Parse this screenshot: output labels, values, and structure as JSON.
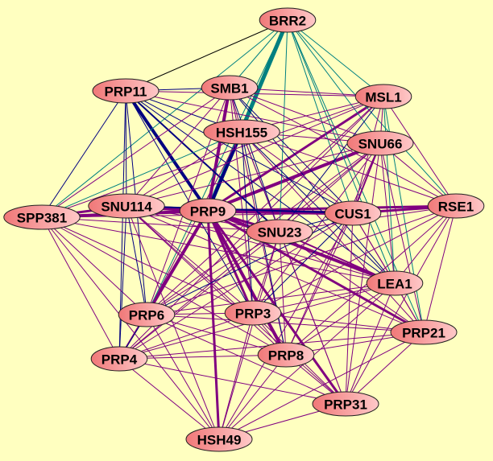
{
  "background": "#ffffc0",
  "node_fill": [
    "#f07878",
    "#ffc8c8"
  ],
  "edge_colors": {
    "p": "#800080",
    "n": "#000080",
    "t": "#008080",
    "k": "#000000"
  },
  "nodes": [
    "BRR2",
    "PRP11",
    "SMB1",
    "MSL1",
    "HSH155",
    "SNU66",
    "SPP381",
    "SNU114",
    "PRP9",
    "CUS1",
    "RSE1",
    "SNU23",
    "LEA1",
    "PRP6",
    "PRP3",
    "PRP21",
    "PRP4",
    "PRP8",
    "PRP31",
    "HSH49"
  ],
  "edges": [
    [
      "PRP9",
      "BRR2",
      "t",
      5
    ],
    [
      "PRP9",
      "HSH155",
      "n",
      4
    ],
    [
      "PRP9",
      "SMB1",
      "p",
      4
    ],
    [
      "PRP9",
      "PRP11",
      "n",
      4
    ],
    [
      "PRP9",
      "CUS1",
      "p",
      5
    ],
    [
      "PRP9",
      "SNU114",
      "p",
      5
    ],
    [
      "PRP9",
      "SPP381",
      "p",
      4
    ],
    [
      "PRP9",
      "SNU66",
      "p",
      4
    ],
    [
      "PRP9",
      "MSL1",
      "p",
      3
    ],
    [
      "PRP9",
      "PRP6",
      "p",
      4
    ],
    [
      "PRP9",
      "PRP3",
      "p",
      3
    ],
    [
      "PRP9",
      "PRP8",
      "p",
      4
    ],
    [
      "PRP9",
      "LEA1",
      "p",
      4
    ],
    [
      "PRP9",
      "PRP21",
      "p",
      3
    ],
    [
      "PRP9",
      "PRP31",
      "p",
      3
    ],
    [
      "PRP9",
      "HSH49",
      "p",
      3
    ],
    [
      "PRP9",
      "SNU23",
      "p",
      3
    ],
    [
      "PRP9",
      "RSE1",
      "p",
      3
    ],
    [
      "PRP9",
      "PRP4",
      "p",
      2
    ],
    [
      "BRR2",
      "PRP11",
      "k",
      1
    ],
    [
      "BRR2",
      "HSH155",
      "t",
      3
    ],
    [
      "BRR2",
      "SMB1",
      "t",
      1
    ],
    [
      "BRR2",
      "MSL1",
      "t",
      1
    ],
    [
      "BRR2",
      "SNU66",
      "t",
      1
    ],
    [
      "BRR2",
      "CUS1",
      "t",
      1
    ],
    [
      "BRR2",
      "RSE1",
      "t",
      1
    ],
    [
      "BRR2",
      "LEA1",
      "t",
      1
    ],
    [
      "BRR2",
      "PRP21",
      "t",
      1
    ],
    [
      "BRR2",
      "SNU23",
      "t",
      1
    ],
    [
      "BRR2",
      "PRP6",
      "t",
      1
    ],
    [
      "BRR2",
      "SPP381",
      "t",
      1
    ],
    [
      "PRP11",
      "SMB1",
      "n",
      1
    ],
    [
      "PRP11",
      "HSH155",
      "n",
      1
    ],
    [
      "PRP11",
      "SNU114",
      "n",
      1
    ],
    [
      "PRP11",
      "SPP381",
      "n",
      1
    ],
    [
      "PRP11",
      "PRP6",
      "n",
      1
    ],
    [
      "PRP11",
      "PRP4",
      "n",
      1
    ],
    [
      "PRP11",
      "SNU23",
      "n",
      2
    ],
    [
      "PRP11",
      "CUS1",
      "n",
      1
    ],
    [
      "PRP11",
      "MSL1",
      "p",
      1
    ],
    [
      "PRP11",
      "SNU66",
      "p",
      1
    ],
    [
      "PRP11",
      "LEA1",
      "n",
      1
    ],
    [
      "PRP11",
      "PRP3",
      "n",
      1
    ],
    [
      "SMB1",
      "HSH155",
      "p",
      1
    ],
    [
      "SMB1",
      "MSL1",
      "p",
      1
    ],
    [
      "SMB1",
      "SNU66",
      "p",
      1
    ],
    [
      "SMB1",
      "CUS1",
      "n",
      1
    ],
    [
      "SMB1",
      "SNU23",
      "n",
      1
    ],
    [
      "SMB1",
      "PRP3",
      "p",
      1
    ],
    [
      "SMB1",
      "PRP8",
      "p",
      1
    ],
    [
      "SMB1",
      "LEA1",
      "n",
      1
    ],
    [
      "SMB1",
      "SNU114",
      "p",
      1
    ],
    [
      "SMB1",
      "PRP6",
      "p",
      1
    ],
    [
      "SMB1",
      "RSE1",
      "p",
      1
    ],
    [
      "MSL1",
      "HSH155",
      "p",
      1
    ],
    [
      "MSL1",
      "SNU66",
      "p",
      1
    ],
    [
      "MSL1",
      "CUS1",
      "p",
      1
    ],
    [
      "MSL1",
      "RSE1",
      "p",
      1
    ],
    [
      "MSL1",
      "LEA1",
      "t",
      1
    ],
    [
      "MSL1",
      "PRP21",
      "t",
      1
    ],
    [
      "MSL1",
      "SNU23",
      "n",
      1
    ],
    [
      "MSL1",
      "PRP6",
      "p",
      1
    ],
    [
      "MSL1",
      "SNU114",
      "p",
      1
    ],
    [
      "MSL1",
      "SPP381",
      "p",
      1
    ],
    [
      "MSL1",
      "PRP4",
      "p",
      1
    ],
    [
      "HSH155",
      "SNU66",
      "p",
      1
    ],
    [
      "HSH155",
      "CUS1",
      "p",
      1
    ],
    [
      "HSH155",
      "SNU23",
      "n",
      1
    ],
    [
      "HSH155",
      "LEA1",
      "n",
      1
    ],
    [
      "HSH155",
      "PRP3",
      "n",
      1
    ],
    [
      "HSH155",
      "PRP8",
      "n",
      1
    ],
    [
      "HSH155",
      "PRP6",
      "p",
      1
    ],
    [
      "HSH155",
      "PRP21",
      "p",
      1
    ],
    [
      "HSH155",
      "SNU114",
      "p",
      1
    ],
    [
      "HSH155",
      "RSE1",
      "p",
      1
    ],
    [
      "HSH155",
      "PRP31",
      "p",
      1
    ],
    [
      "SNU66",
      "CUS1",
      "p",
      2
    ],
    [
      "SNU66",
      "RSE1",
      "p",
      1
    ],
    [
      "SNU66",
      "LEA1",
      "p",
      1
    ],
    [
      "SNU66",
      "PRP21",
      "p",
      1
    ],
    [
      "SNU66",
      "SNU23",
      "p",
      1
    ],
    [
      "SNU66",
      "PRP6",
      "p",
      1
    ],
    [
      "SNU66",
      "PRP3",
      "p",
      1
    ],
    [
      "SNU66",
      "PRP8",
      "p",
      1
    ],
    [
      "SNU66",
      "SNU114",
      "p",
      1
    ],
    [
      "SNU66",
      "PRP4",
      "p",
      1
    ],
    [
      "SNU66",
      "PRP31",
      "p",
      1
    ],
    [
      "SPP381",
      "SNU114",
      "p",
      3
    ],
    [
      "SPP381",
      "CUS1",
      "p",
      1
    ],
    [
      "SPP381",
      "PRP6",
      "p",
      1
    ],
    [
      "SPP381",
      "PRP4",
      "p",
      1
    ],
    [
      "SPP381",
      "PRP3",
      "p",
      1
    ],
    [
      "SPP381",
      "PRP8",
      "p",
      1
    ],
    [
      "SPP381",
      "HSH49",
      "p",
      1
    ],
    [
      "SPP381",
      "SNU23",
      "p",
      1
    ],
    [
      "SPP381",
      "LEA1",
      "p",
      1
    ],
    [
      "SPP381",
      "SMB1",
      "p",
      1
    ],
    [
      "SPP381",
      "HSH155",
      "t",
      1
    ],
    [
      "SNU114",
      "CUS1",
      "n",
      2
    ],
    [
      "SNU114",
      "PRP6",
      "n",
      1
    ],
    [
      "SNU114",
      "PRP4",
      "n",
      1
    ],
    [
      "SNU114",
      "PRP3",
      "p",
      1
    ],
    [
      "SNU114",
      "PRP8",
      "p",
      1
    ],
    [
      "SNU114",
      "HSH49",
      "p",
      1
    ],
    [
      "SNU114",
      "SNU23",
      "p",
      1
    ],
    [
      "SNU114",
      "LEA1",
      "p",
      1
    ],
    [
      "SNU114",
      "PRP21",
      "p",
      1
    ],
    [
      "SNU114",
      "PRP31",
      "p",
      1
    ],
    [
      "CUS1",
      "RSE1",
      "p",
      3
    ],
    [
      "CUS1",
      "SNU23",
      "n",
      1
    ],
    [
      "CUS1",
      "LEA1",
      "p",
      1
    ],
    [
      "CUS1",
      "PRP21",
      "p",
      1
    ],
    [
      "CUS1",
      "PRP6",
      "n",
      1
    ],
    [
      "CUS1",
      "PRP3",
      "n",
      1
    ],
    [
      "CUS1",
      "PRP8",
      "p",
      1
    ],
    [
      "CUS1",
      "PRP4",
      "p",
      1
    ],
    [
      "CUS1",
      "PRP31",
      "p",
      1
    ],
    [
      "CUS1",
      "HSH49",
      "p",
      1
    ],
    [
      "RSE1",
      "LEA1",
      "p",
      1
    ],
    [
      "RSE1",
      "PRP21",
      "p",
      1
    ],
    [
      "RSE1",
      "SNU23",
      "p",
      1
    ],
    [
      "RSE1",
      "PRP6",
      "p",
      1
    ],
    [
      "RSE1",
      "PRP8",
      "p",
      1
    ],
    [
      "RSE1",
      "PRP31",
      "p",
      1
    ],
    [
      "RSE1",
      "PRP3",
      "p",
      1
    ],
    [
      "SNU23",
      "LEA1",
      "p",
      2
    ],
    [
      "SNU23",
      "PRP21",
      "p",
      1
    ],
    [
      "SNU23",
      "PRP6",
      "p",
      1
    ],
    [
      "SNU23",
      "PRP3",
      "p",
      1
    ],
    [
      "SNU23",
      "PRP8",
      "p",
      1
    ],
    [
      "SNU23",
      "PRP4",
      "p",
      1
    ],
    [
      "SNU23",
      "PRP31",
      "p",
      1
    ],
    [
      "SNU23",
      "HSH49",
      "p",
      1
    ],
    [
      "LEA1",
      "PRP21",
      "p",
      1
    ],
    [
      "LEA1",
      "PRP6",
      "p",
      1
    ],
    [
      "LEA1",
      "PRP3",
      "p",
      1
    ],
    [
      "LEA1",
      "PRP8",
      "p",
      1
    ],
    [
      "LEA1",
      "PRP31",
      "p",
      1
    ],
    [
      "LEA1",
      "HSH49",
      "p",
      1
    ],
    [
      "LEA1",
      "PRP4",
      "p",
      1
    ],
    [
      "PRP6",
      "PRP3",
      "p",
      1
    ],
    [
      "PRP6",
      "PRP4",
      "n",
      1
    ],
    [
      "PRP6",
      "PRP8",
      "p",
      1
    ],
    [
      "PRP6",
      "HSH49",
      "p",
      1
    ],
    [
      "PRP6",
      "PRP31",
      "p",
      1
    ],
    [
      "PRP6",
      "PRP21",
      "p",
      1
    ],
    [
      "PRP3",
      "PRP8",
      "p",
      1
    ],
    [
      "PRP3",
      "PRP4",
      "p",
      1
    ],
    [
      "PRP3",
      "HSH49",
      "p",
      1
    ],
    [
      "PRP3",
      "PRP31",
      "p",
      1
    ],
    [
      "PRP3",
      "PRP21",
      "p",
      1
    ],
    [
      "PRP21",
      "PRP8",
      "p",
      1
    ],
    [
      "PRP21",
      "PRP31",
      "p",
      1
    ],
    [
      "PRP21",
      "HSH49",
      "p",
      1
    ],
    [
      "PRP21",
      "PRP4",
      "p",
      1
    ],
    [
      "PRP4",
      "PRP8",
      "p",
      1
    ],
    [
      "PRP4",
      "HSH49",
      "p",
      1
    ],
    [
      "PRP4",
      "PRP31",
      "p",
      1
    ],
    [
      "PRP8",
      "PRP31",
      "p",
      1
    ],
    [
      "PRP8",
      "HSH49",
      "p",
      1
    ],
    [
      "PRP31",
      "HSH49",
      "p",
      1
    ]
  ]
}
